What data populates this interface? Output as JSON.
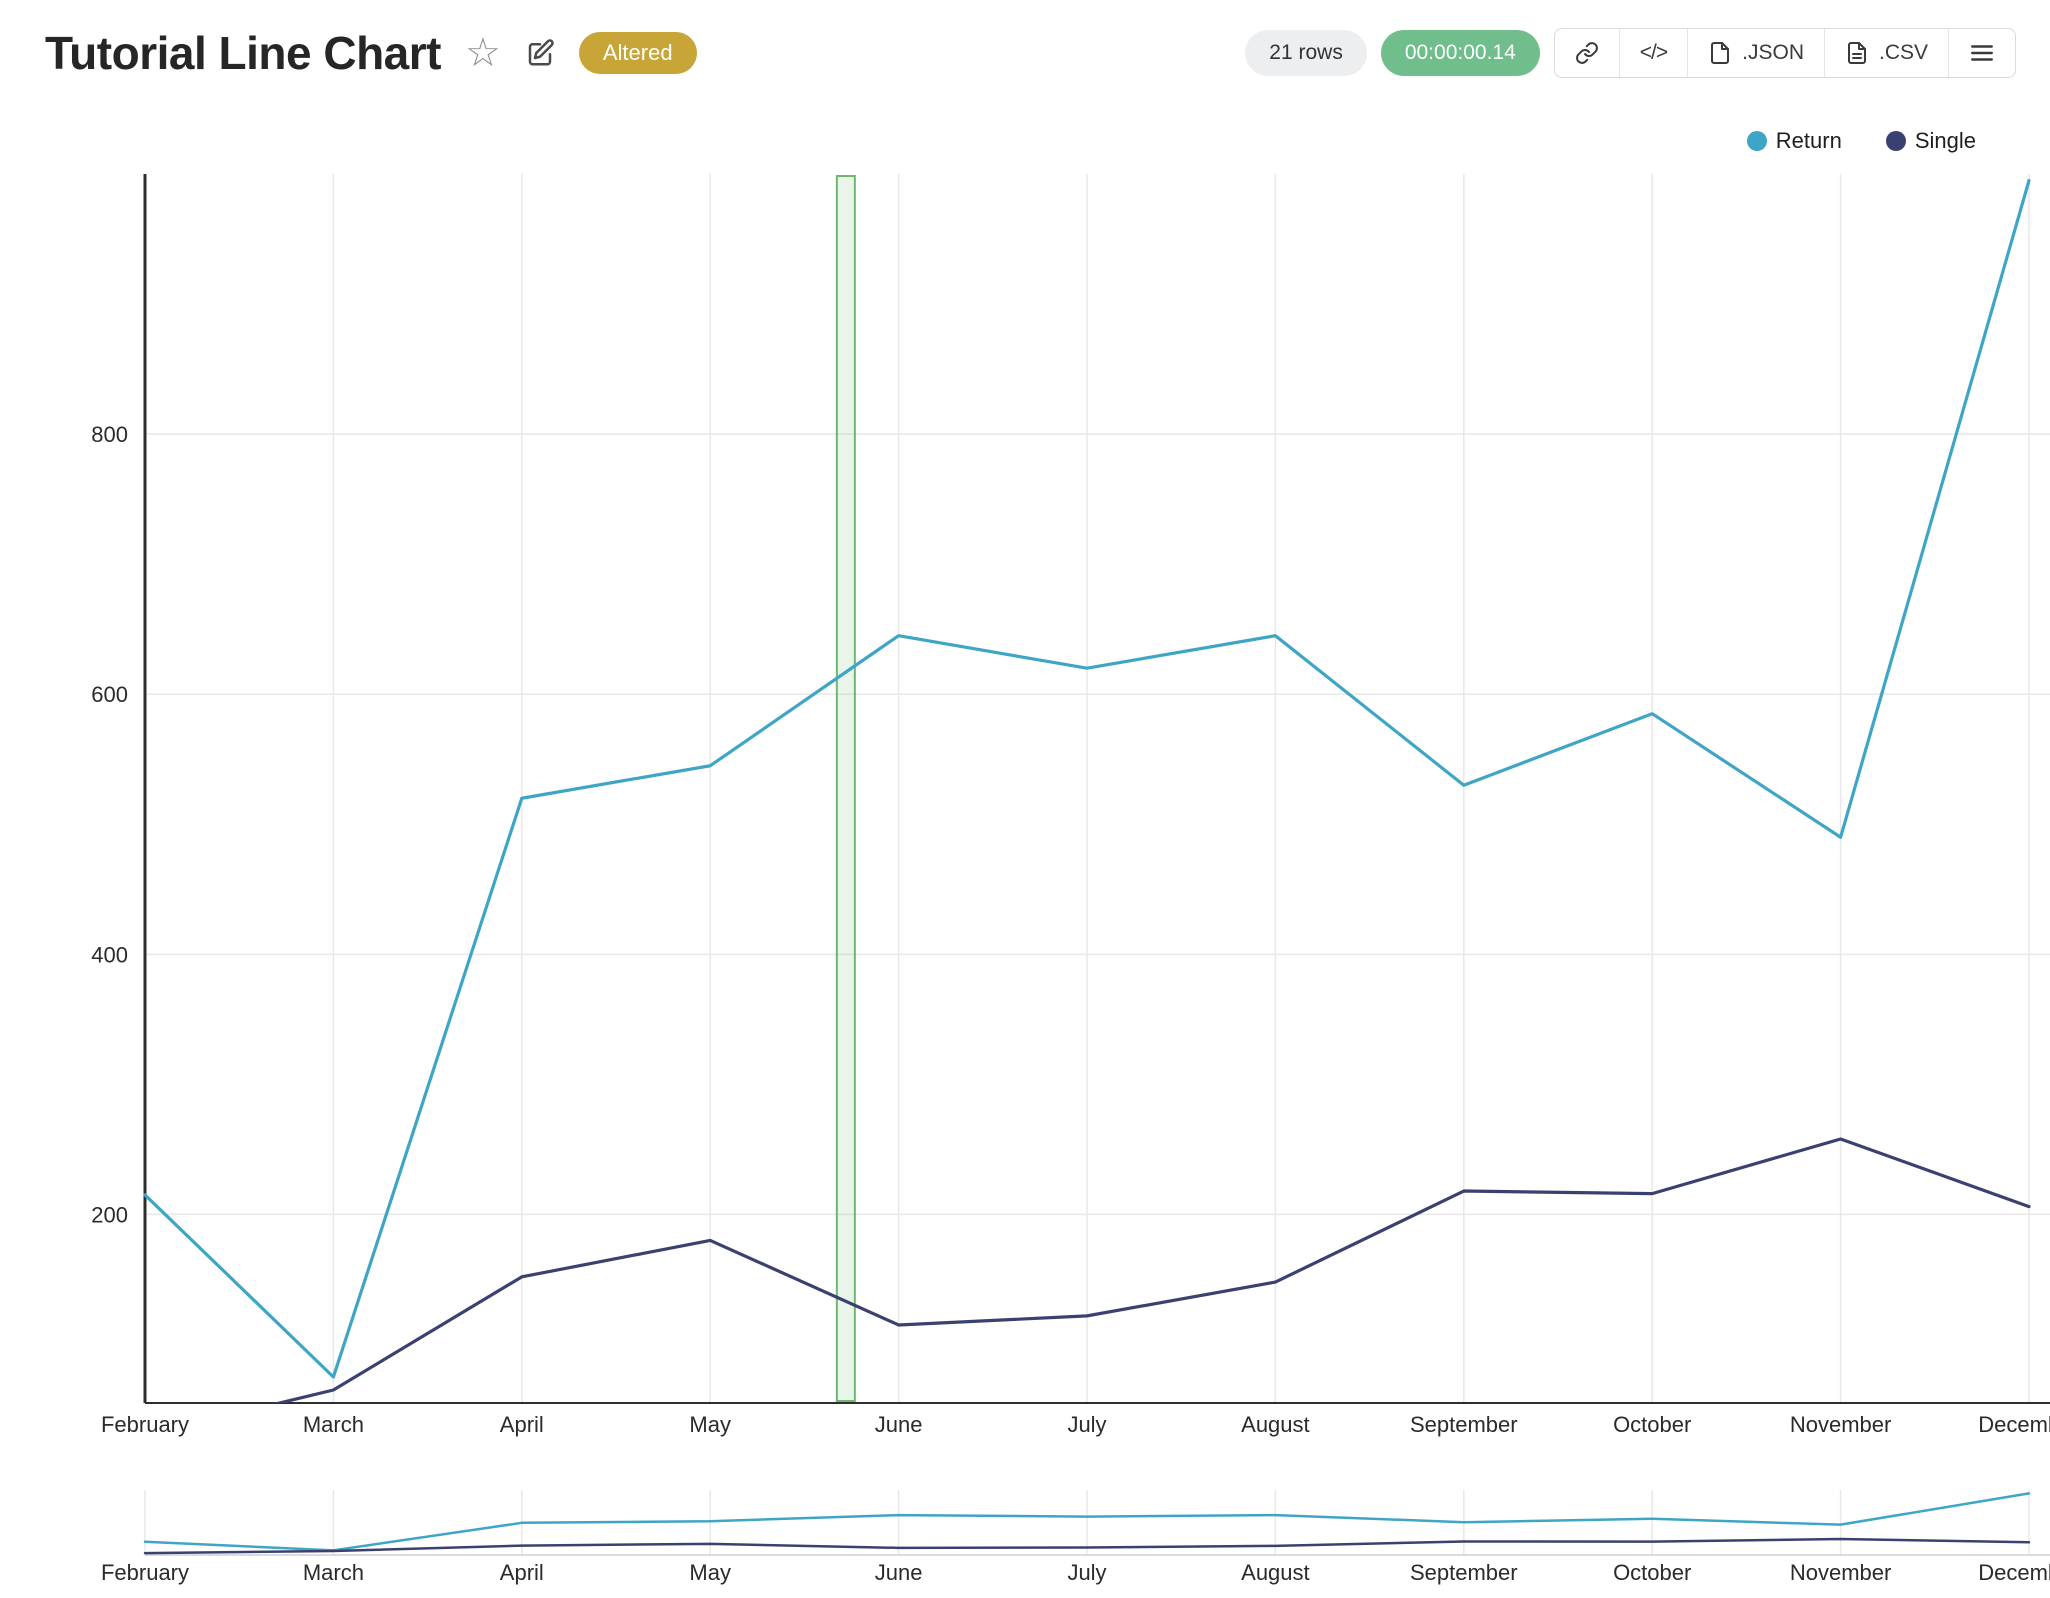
{
  "header": {
    "title": "Tutorial Line Chart",
    "badge": "Altered",
    "rows_label": "21 rows",
    "timer": "00:00:00.14",
    "export_json": ".JSON",
    "export_csv": ".CSV"
  },
  "icons": {
    "favorite_star": "☆",
    "code_glyph": "</>"
  },
  "colors": {
    "badge_gold": "#C7A536",
    "timer_green": "#6FBE8C",
    "series_return": "#3FA5C6",
    "series_single": "#3A4170",
    "band_fill": "rgba(76,175,80,0.13)",
    "band_stroke": "rgba(67,160,71,0.75)",
    "gridline": "#E8E8E8",
    "axis": "#2E2E2E",
    "tick_text": "#2b2b2b"
  },
  "legend": [
    {
      "label": "Return",
      "color": "#3FA5C6"
    },
    {
      "label": "Single",
      "color": "#3A4170"
    }
  ],
  "chart_data": {
    "type": "line",
    "title": "Tutorial Line Chart",
    "categories": [
      "February",
      "March",
      "April",
      "May",
      "June",
      "July",
      "August",
      "September",
      "October",
      "November",
      "December"
    ],
    "series": [
      {
        "name": "Return",
        "color": "#3FA5C6",
        "values": [
          215,
          75,
          520,
          545,
          645,
          620,
          645,
          530,
          585,
          490,
          995
        ]
      },
      {
        "name": "Single",
        "color": "#3A4170",
        "values": [
          30,
          65,
          152,
          180,
          115,
          122,
          148,
          218,
          216,
          258,
          206
        ]
      }
    ],
    "xlabel": "",
    "ylabel": "",
    "yticks": [
      200,
      400,
      600,
      800
    ],
    "ylim": [
      55,
      1000
    ],
    "grid": true,
    "legend_position": "top-right",
    "annotation_band": {
      "between": [
        "May",
        "June"
      ],
      "fraction": 0.72
    },
    "minimap": true,
    "minimap_ylim": [
      0,
      1050
    ]
  }
}
